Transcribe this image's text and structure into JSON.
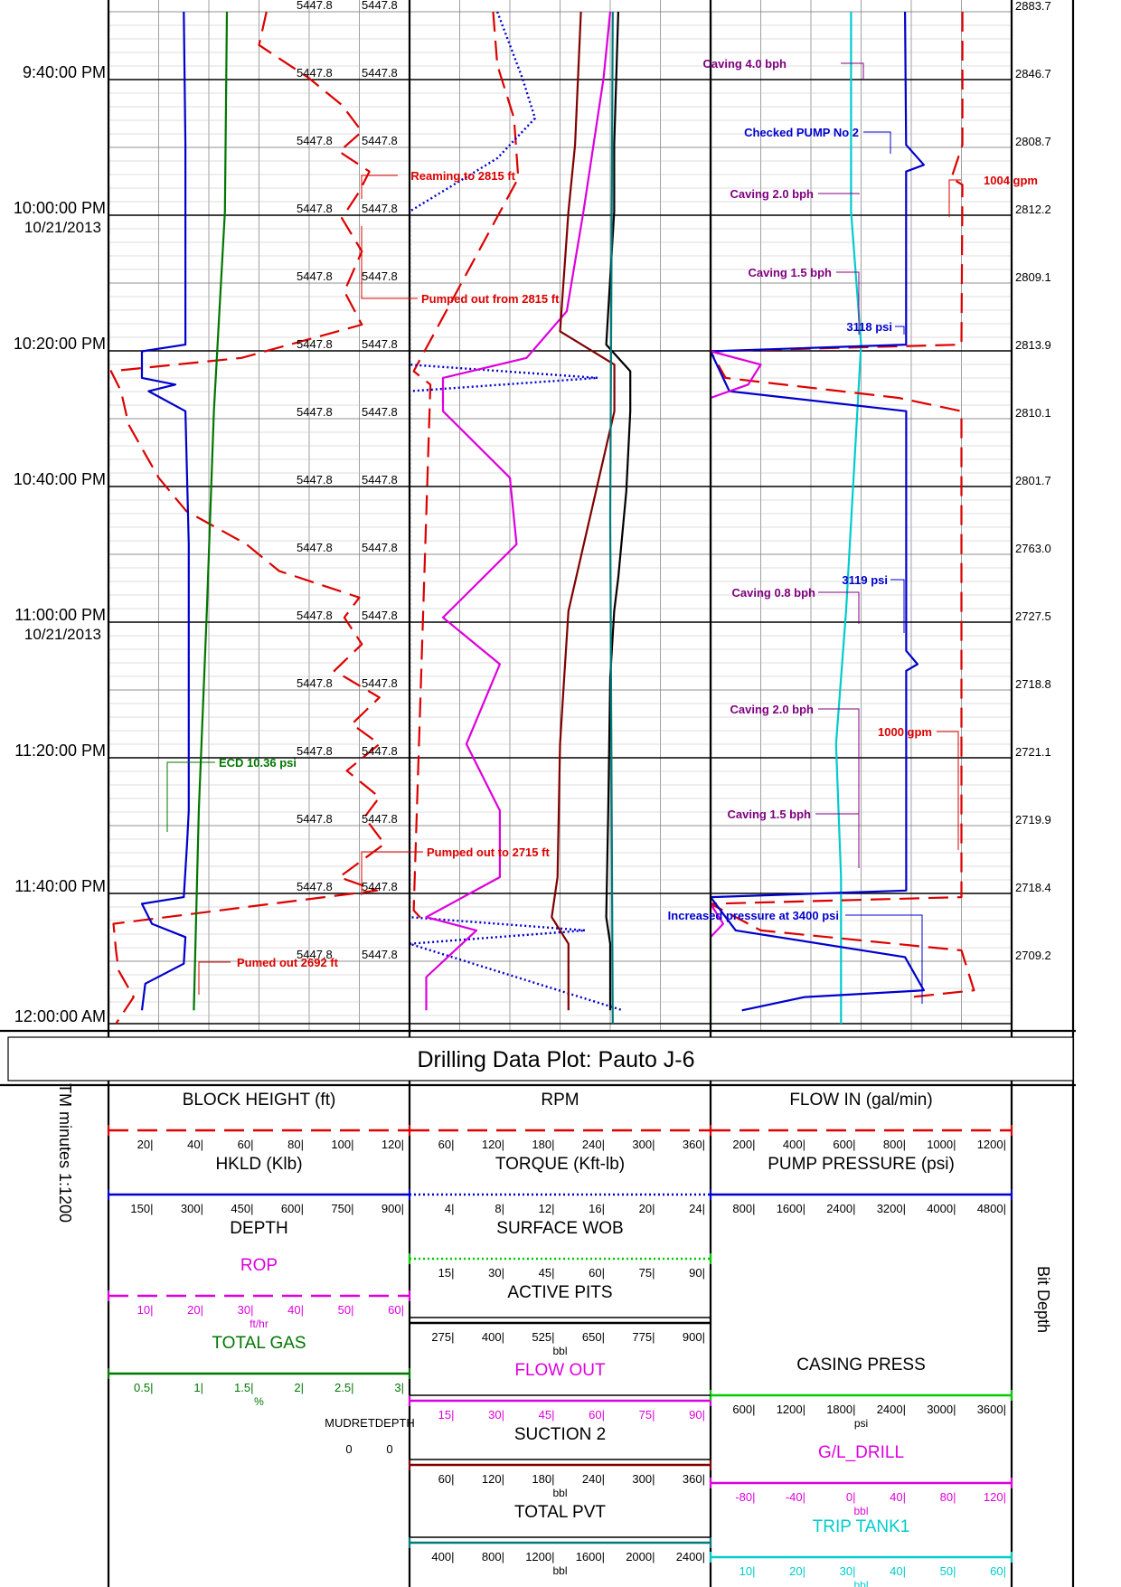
{
  "title": "Drilling Data Plot: Pauto J-6",
  "time_axis": {
    "label": "TM minutes 1:1200",
    "ticks": [
      {
        "time": "9:40:00 PM",
        "date": ""
      },
      {
        "time": "10:00:00 PM",
        "date": "10/21/2013"
      },
      {
        "time": "10:20:00 PM",
        "date": ""
      },
      {
        "time": "10:40:00 PM",
        "date": ""
      },
      {
        "time": "11:00:00 PM",
        "date": "10/21/2013"
      },
      {
        "time": "11:20:00 PM",
        "date": ""
      },
      {
        "time": "11:40:00 PM",
        "date": ""
      },
      {
        "time": "12:00:00 AM",
        "date": ""
      }
    ]
  },
  "depth_readings": [
    "5447.8",
    "5447.8",
    "5447.8",
    "5447.8",
    "5447.8",
    "5447.8",
    "5447.8",
    "5447.8",
    "5447.8",
    "5447.8",
    "5447.8",
    "5447.8",
    "5447.8",
    "5447.8",
    "5447.8"
  ],
  "bit_depth": {
    "label": "Bit Depth",
    "values": [
      "2883.7",
      "2846.7",
      "2808.7",
      "2812.2",
      "2809.1",
      "2813.9",
      "2810.1",
      "2801.7",
      "2763.0",
      "2727.5",
      "2718.8",
      "2721.1",
      "2719.9",
      "2718.4",
      "2709.2"
    ]
  },
  "annotations": [
    {
      "text": "Caving 4.0 bph",
      "color": "#800080"
    },
    {
      "text": "Checked PUMP No 2",
      "color": "#0000cc"
    },
    {
      "text": "Reaming to 2815 ft",
      "color": "#dd0000"
    },
    {
      "text": "1004 gpm",
      "color": "#dd0000"
    },
    {
      "text": "Caving 2.0 bph",
      "color": "#800080"
    },
    {
      "text": "Caving 1.5 bph",
      "color": "#800080"
    },
    {
      "text": "Pumped out from 2815 ft",
      "color": "#dd0000"
    },
    {
      "text": "3118 psi",
      "color": "#0000cc"
    },
    {
      "text": "3119 psi",
      "color": "#0000cc"
    },
    {
      "text": "Caving 0.8 bph",
      "color": "#800080"
    },
    {
      "text": "Caving 2.0 bph",
      "color": "#800080"
    },
    {
      "text": "1000 gpm",
      "color": "#dd0000"
    },
    {
      "text": "ECD 10.36 psi",
      "color": "#007700"
    },
    {
      "text": "Caving 1.5 bph",
      "color": "#800080"
    },
    {
      "text": "Pumped out to 2715 ft",
      "color": "#dd0000"
    },
    {
      "text": "Increased pressure at 3400 psi",
      "color": "#0000cc"
    },
    {
      "text": "Pumed out 2692 ft",
      "color": "#dd0000"
    }
  ],
  "legend": {
    "track1": [
      {
        "name": "BLOCK HEIGHT (ft)",
        "color": "#dd0000",
        "dash": "long",
        "ticks": [
          "20",
          "40",
          "60",
          "80",
          "100",
          "120"
        ],
        "unit": ""
      },
      {
        "name": "HKLD (Klb)",
        "color": "#0000cc",
        "dash": "solid",
        "ticks": [
          "150",
          "300",
          "450",
          "600",
          "750",
          "900"
        ],
        "unit": ""
      },
      {
        "name": "DEPTH",
        "color": "#000000",
        "dash": "none",
        "ticks": [],
        "unit": ""
      },
      {
        "name": "ROP",
        "color": "#dd00dd",
        "dash": "long",
        "ticks": [
          "10",
          "20",
          "30",
          "40",
          "50",
          "60"
        ],
        "unit": "ft/hr"
      },
      {
        "name": "TOTAL GAS",
        "color": "#007700",
        "dash": "solid",
        "ticks": [
          "0.5",
          "1",
          "1.5",
          "2",
          "2.5",
          "3"
        ],
        "unit": "%"
      }
    ],
    "mudret": {
      "label": "MUDRETDEPTH",
      "values": [
        "0",
        "0"
      ]
    },
    "track2": [
      {
        "name": "RPM",
        "color": "#dd0000",
        "dash": "long",
        "ticks": [
          "60",
          "120",
          "180",
          "240",
          "300",
          "360"
        ],
        "unit": ""
      },
      {
        "name": "TORQUE (Kft-lb)",
        "color": "#0000cc",
        "dash": "dot",
        "ticks": [
          "4",
          "8",
          "12",
          "16",
          "20",
          "24"
        ],
        "unit": ""
      },
      {
        "name": "SURFACE WOB",
        "color": "#00cc00",
        "dash": "dot",
        "ticks": [
          "15",
          "30",
          "45",
          "60",
          "75",
          "90"
        ],
        "unit": ""
      },
      {
        "name": "ACTIVE PITS",
        "color": "#000000",
        "dash": "solid",
        "ticks": [
          "275",
          "400",
          "525",
          "650",
          "775",
          "900"
        ],
        "unit": "bbl"
      },
      {
        "name": "FLOW OUT",
        "color": "#dd00dd",
        "dash": "solid",
        "ticks": [
          "15",
          "30",
          "45",
          "60",
          "75",
          "90"
        ],
        "unit": ""
      },
      {
        "name": "SUCTION 2",
        "color": "#800000",
        "dash": "solid",
        "ticks": [
          "60",
          "120",
          "180",
          "240",
          "300",
          "360"
        ],
        "unit": "bbl"
      },
      {
        "name": "TOTAL PVT",
        "color": "#007b7b",
        "dash": "solid",
        "ticks": [
          "400",
          "800",
          "1200",
          "1600",
          "2000",
          "2400"
        ],
        "unit": "bbl"
      }
    ],
    "track3": [
      {
        "name": "FLOW IN (gal/min)",
        "color": "#dd0000",
        "dash": "long",
        "ticks": [
          "200",
          "400",
          "600",
          "800",
          "1000",
          "1200"
        ],
        "unit": ""
      },
      {
        "name": "PUMP PRESSURE (psi)",
        "color": "#0000cc",
        "dash": "solid",
        "ticks": [
          "800",
          "1600",
          "2400",
          "3200",
          "4000",
          "4800"
        ],
        "unit": ""
      },
      {
        "name": "CASING PRESS",
        "color": "#00cc00",
        "dash": "solid",
        "ticks": [
          "600",
          "1200",
          "1800",
          "2400",
          "3000",
          "3600"
        ],
        "unit": "psi"
      },
      {
        "name": "G/L_DRILL",
        "color": "#dd00dd",
        "dash": "solid",
        "ticks": [
          "-80",
          "-40",
          "0",
          "40",
          "80",
          "120"
        ],
        "unit": "bbl"
      },
      {
        "name": "TRIP TANK1",
        "color": "#00cccc",
        "dash": "solid",
        "ticks": [
          "10",
          "20",
          "30",
          "40",
          "50",
          "60"
        ],
        "unit": "bbl"
      }
    ]
  },
  "chart_data": {
    "type": "line",
    "title": "Drilling Data Plot: Pauto J-6",
    "x_axis": "time",
    "time_range": [
      "9:33 PM",
      "12:00:00 AM"
    ],
    "grid": true,
    "series": [
      {
        "name": "BLOCK HEIGHT (ft)",
        "color": "#dd0000",
        "style": "dashed",
        "points": [
          [
            0,
            63
          ],
          [
            5,
            60
          ],
          [
            10,
            80
          ],
          [
            14,
            93
          ],
          [
            18,
            101
          ],
          [
            21,
            92
          ],
          [
            24,
            104
          ],
          [
            27,
            100
          ],
          [
            31,
            93
          ],
          [
            36,
            101
          ],
          [
            42,
            94
          ],
          [
            47,
            101
          ],
          [
            52,
            53
          ],
          [
            54,
            1
          ],
          [
            57,
            5
          ],
          [
            62,
            8
          ],
          [
            66,
            14
          ],
          [
            70,
            20
          ],
          [
            75,
            31
          ],
          [
            80,
            55
          ],
          [
            84,
            68
          ],
          [
            88,
            100
          ],
          [
            91,
            94
          ],
          [
            95,
            101
          ],
          [
            99,
            90
          ],
          [
            103,
            108
          ],
          [
            107,
            97
          ],
          [
            110,
            108
          ],
          [
            114,
            95
          ],
          [
            118,
            108
          ],
          [
            121,
            102
          ],
          [
            125,
            110
          ],
          [
            130,
            92
          ],
          [
            132,
            107
          ],
          [
            137,
            2
          ],
          [
            141,
            3
          ],
          [
            144,
            4
          ],
          [
            148,
            10
          ],
          [
            152,
            3
          ]
        ]
      },
      {
        "name": "HKLD (Klb)",
        "color": "#0000cc",
        "style": "solid",
        "points": [
          [
            0,
            225
          ],
          [
            20,
            230
          ],
          [
            50,
            230
          ],
          [
            51,
            100
          ],
          [
            55,
            100
          ],
          [
            56,
            200
          ],
          [
            57,
            120
          ],
          [
            60,
            230
          ],
          [
            80,
            240
          ],
          [
            100,
            240
          ],
          [
            120,
            240
          ],
          [
            125,
            235
          ],
          [
            133,
            225
          ],
          [
            134,
            100
          ],
          [
            137,
            130
          ],
          [
            139,
            230
          ],
          [
            143,
            225
          ],
          [
            146,
            110
          ],
          [
            150,
            100
          ]
        ]
      },
      {
        "name": "ROP",
        "color": "#dd00dd",
        "style": "dashed",
        "points": [
          [
            0,
            0
          ],
          [
            152,
            0
          ]
        ]
      },
      {
        "name": "TOTAL GAS",
        "color": "#007700",
        "style": "solid",
        "points": [
          [
            0,
            1.18
          ],
          [
            30,
            1.16
          ],
          [
            60,
            1.05
          ],
          [
            90,
            0.98
          ],
          [
            120,
            0.9
          ],
          [
            150,
            0.85
          ]
        ]
      },
      {
        "name": "RPM",
        "color": "#dd0000",
        "style": "dashed",
        "points": [
          [
            0,
            100
          ],
          [
            8,
            105
          ],
          [
            16,
            125
          ],
          [
            25,
            130
          ],
          [
            54,
            5
          ],
          [
            56,
            25
          ],
          [
            135,
            5
          ],
          [
            137,
            20
          ]
        ]
      },
      {
        "name": "TORQUE (Kft-lb)",
        "color": "#0000cc",
        "style": "dotted",
        "points": [
          [
            0,
            7
          ],
          [
            10,
            9
          ],
          [
            16,
            10
          ],
          [
            22,
            7
          ],
          [
            30,
            0
          ],
          [
            53,
            0
          ],
          [
            55,
            15
          ],
          [
            57,
            0
          ],
          [
            136,
            0
          ],
          [
            138,
            14
          ],
          [
            140,
            0
          ],
          [
            150,
            17
          ]
        ]
      },
      {
        "name": "ACTIVE PITS",
        "color": "#000000",
        "style": "solid",
        "points": [
          [
            0,
            670
          ],
          [
            20,
            660
          ],
          [
            30,
            660
          ],
          [
            50,
            640
          ],
          [
            54,
            700
          ],
          [
            60,
            700
          ],
          [
            72,
            690
          ],
          [
            85,
            670
          ],
          [
            90,
            660
          ],
          [
            100,
            650
          ],
          [
            120,
            645
          ],
          [
            136,
            640
          ],
          [
            140,
            650
          ],
          [
            150,
            650
          ]
        ]
      },
      {
        "name": "FLOW OUT",
        "color": "#dd00dd",
        "style": "solid",
        "points": [
          [
            0,
            60
          ],
          [
            10,
            58
          ],
          [
            30,
            52
          ],
          [
            45,
            47
          ],
          [
            52,
            35
          ],
          [
            55,
            10
          ],
          [
            60,
            10
          ],
          [
            70,
            30
          ],
          [
            80,
            32
          ],
          [
            86,
            20
          ],
          [
            91,
            10
          ],
          [
            98,
            27
          ],
          [
            110,
            17
          ],
          [
            120,
            27
          ],
          [
            130,
            27
          ],
          [
            136,
            5
          ],
          [
            138,
            20
          ],
          [
            145,
            5
          ],
          [
            150,
            5
          ]
        ]
      },
      {
        "name": "SUCTION 2",
        "color": "#800000",
        "style": "solid",
        "points": [
          [
            0,
            205
          ],
          [
            20,
            198
          ],
          [
            30,
            190
          ],
          [
            48,
            180
          ],
          [
            53,
            245
          ],
          [
            60,
            245
          ],
          [
            90,
            190
          ],
          [
            100,
            185
          ],
          [
            110,
            180
          ],
          [
            130,
            177
          ],
          [
            136,
            170
          ],
          [
            140,
            190
          ],
          [
            150,
            190
          ]
        ]
      },
      {
        "name": "TOTAL PVT",
        "color": "#007b7b",
        "style": "solid",
        "points": [
          [
            0,
            1620
          ],
          [
            76,
            1600
          ],
          [
            152,
            1620
          ]
        ]
      },
      {
        "name": "TRIP TANK1",
        "color": "#00cccc",
        "style": "solid",
        "points": [
          [
            0,
            28
          ],
          [
            30,
            28
          ],
          [
            50,
            30
          ],
          [
            90,
            27
          ],
          [
            110,
            25
          ],
          [
            130,
            26
          ],
          [
            152,
            26
          ]
        ]
      },
      {
        "name": "FLOW IN (gal/min)",
        "color": "#dd0000",
        "style": "dashed",
        "points": [
          [
            0,
            1004
          ],
          [
            20,
            1004
          ],
          [
            25,
            960
          ],
          [
            26,
            1004
          ],
          [
            50,
            1000
          ],
          [
            51,
            0
          ],
          [
            55,
            60
          ],
          [
            58,
            750
          ],
          [
            60,
            1000
          ],
          [
            90,
            1000
          ],
          [
            125,
            1000
          ],
          [
            133,
            1000
          ],
          [
            134,
            0
          ],
          [
            138,
            200
          ],
          [
            141,
            1000
          ],
          [
            147,
            1050
          ],
          [
            148,
            800
          ]
        ]
      },
      {
        "name": "PUMP PRESSURE (psi)",
        "color": "#0000cc",
        "style": "solid",
        "points": [
          [
            0,
            3100
          ],
          [
            20,
            3118
          ],
          [
            23,
            3400
          ],
          [
            24,
            3118
          ],
          [
            50,
            3118
          ],
          [
            51,
            0
          ],
          [
            57,
            300
          ],
          [
            60,
            3119
          ],
          [
            96,
            3119
          ],
          [
            98,
            3300
          ],
          [
            99,
            3119
          ],
          [
            132,
            3119
          ],
          [
            133,
            0
          ],
          [
            138,
            400
          ],
          [
            142,
            3100
          ],
          [
            147,
            3400
          ],
          [
            148,
            1500
          ],
          [
            150,
            500
          ]
        ]
      },
      {
        "name": "CASING PRESS",
        "color": "#00cc00",
        "style": "solid",
        "points": [
          [
            0,
            0
          ],
          [
            152,
            0
          ]
        ]
      },
      {
        "name": "G/L_DRILL",
        "color": "#dd00dd",
        "style": "solid",
        "points": [
          [
            0,
            -120
          ],
          [
            51,
            -120
          ],
          [
            53,
            -80
          ],
          [
            56,
            -90
          ],
          [
            58,
            -120
          ],
          [
            134,
            -120
          ],
          [
            137,
            -110
          ],
          [
            139,
            -120
          ]
        ]
      }
    ]
  }
}
